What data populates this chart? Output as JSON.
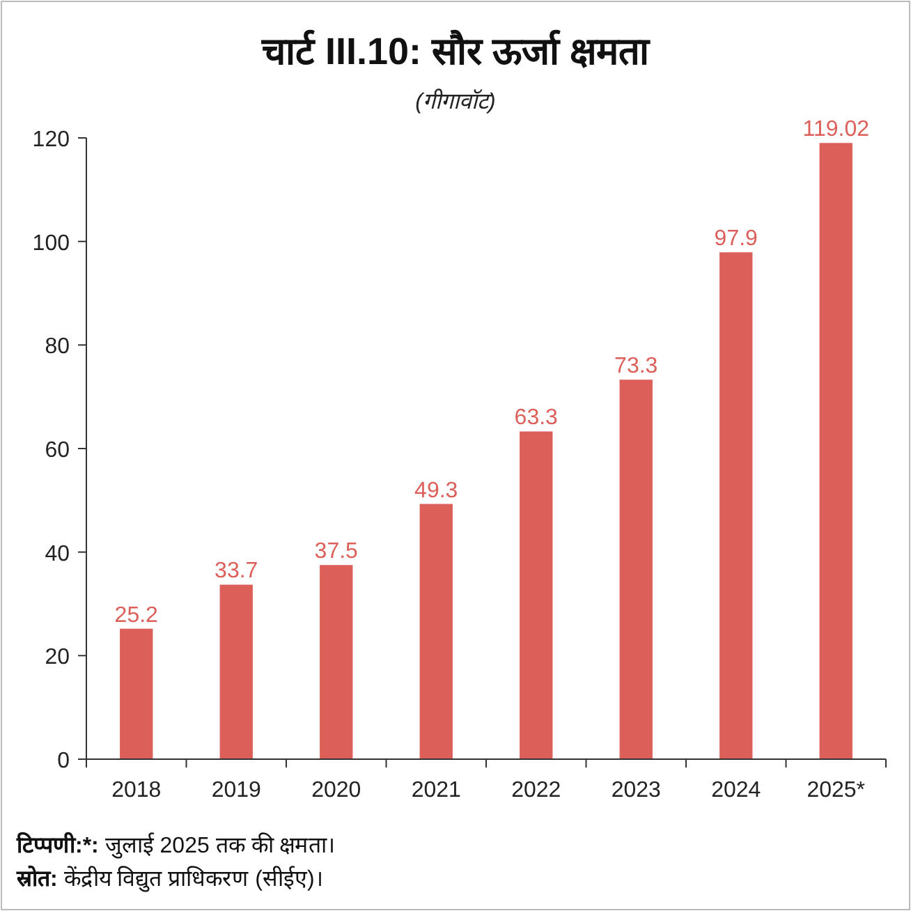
{
  "chart_data": {
    "type": "bar",
    "title": "चार्ट III.10: सौर ऊर्जा क्षमता",
    "subtitle": "(गीगावॉट)",
    "categories": [
      "2018",
      "2019",
      "2020",
      "2021",
      "2022",
      "2023",
      "2024",
      "2025*"
    ],
    "values": [
      25.2,
      33.7,
      37.5,
      49.3,
      63.3,
      73.3,
      97.9,
      119.02
    ],
    "color": "#dc5f5a",
    "data_labels": true,
    "ylim": [
      0,
      120
    ],
    "yticks": [
      0,
      20,
      40,
      60,
      80,
      100,
      120
    ],
    "grid": false,
    "annotations": [
      "टिप्पणी:*: जुलाई 2025 तक की क्षमता।",
      "स्रोत: केंद्रीय विद्युत प्राधिकरण (सीईए)।"
    ]
  }
}
